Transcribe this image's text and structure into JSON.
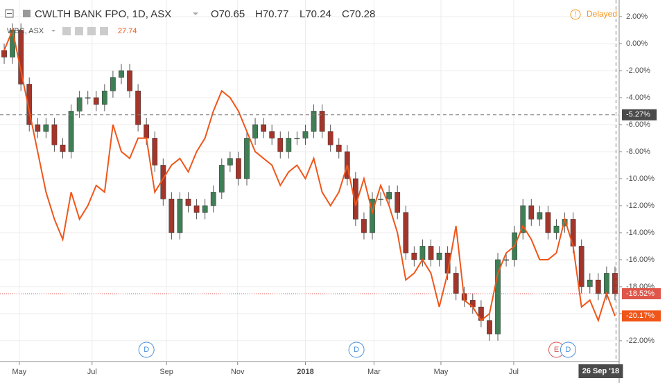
{
  "header": {
    "symbol": "CWLTH BANK FPO, 1D, ASX",
    "open": "O70.65",
    "high": "H70.77",
    "low": "L70.24",
    "close": "C70.28",
    "status": "Delayed"
  },
  "chart_data": {
    "type": "candlestick",
    "xlim": [
      0,
      74
    ],
    "xticks": [
      {
        "value": 2.3,
        "label": "May"
      },
      {
        "value": 11.0,
        "label": "Jul"
      },
      {
        "value": 19.9,
        "label": "Sep"
      },
      {
        "value": 28.4,
        "label": "Nov"
      },
      {
        "value": 36.5,
        "label": "2018"
      },
      {
        "value": 44.7,
        "label": "Mar"
      },
      {
        "value": 52.7,
        "label": "May"
      },
      {
        "value": 61.4,
        "label": "Jul"
      }
    ],
    "ylim": [
      -23.44,
      3.23
    ],
    "yticks": [
      {
        "value": 2,
        "label": "2.00%"
      },
      {
        "value": 0,
        "label": "0.00%"
      },
      {
        "value": -2,
        "label": "-2.00%"
      },
      {
        "value": -4,
        "label": "-4.00%"
      },
      {
        "value": -6,
        "label": "-6.00%"
      },
      {
        "value": -8,
        "label": "-8.00%"
      },
      {
        "value": -10,
        "label": "-10.00%"
      },
      {
        "value": -12,
        "label": "-12.00%"
      },
      {
        "value": -14,
        "label": "-14.00%"
      },
      {
        "value": -16,
        "label": "-16.00%"
      },
      {
        "value": -18,
        "label": "-18.00%"
      },
      {
        "value": -20,
        "label": "-20.00%"
      },
      {
        "value": -22,
        "label": "-22.00%"
      }
    ],
    "grid": true,
    "up_color": "#3f7f55",
    "down_color": "#a3352b",
    "candles": {
      "name": "CWLTH BANK FPO",
      "end_label": "-18.52%",
      "open": [
        -0.5,
        -1,
        1,
        -3,
        -6,
        -6.5,
        -6,
        -7.5,
        -8,
        -5,
        -4,
        -4,
        -4.5,
        -3.5,
        -2.5,
        -2,
        -3.5,
        -6,
        -7,
        -9,
        -11.5,
        -14,
        -11.5,
        -12,
        -12.5,
        -12,
        -11,
        -9,
        -8.5,
        -10,
        -7,
        -6,
        -6.5,
        -7,
        -8,
        -7,
        -7,
        -6.5,
        -5,
        -6.5,
        -7.5,
        -8,
        -10,
        -13,
        -14,
        -11.5,
        -11.5,
        -11,
        -12.5,
        -15.5,
        -16,
        -15,
        -16,
        -15.5,
        -17,
        -18.5,
        -19,
        -19.5,
        -20.5,
        -21.5,
        -16,
        -16,
        -14,
        -12,
        -13,
        -12.5,
        -14,
        -13.5,
        -13,
        -15,
        -18,
        -17.5,
        -18.5,
        -17
      ],
      "high": [
        0,
        1.5,
        1.5,
        -2.5,
        -5.5,
        -5.5,
        -5.5,
        -7,
        -4.5,
        -3.5,
        -3.5,
        -3.5,
        -3,
        -2,
        -1.5,
        -1.5,
        -3,
        -5.5,
        -6.5,
        -8.5,
        -11,
        -11,
        -11,
        -11.5,
        -11.5,
        -10.5,
        -8.5,
        -8,
        -8,
        -6.5,
        -5.5,
        -5.5,
        -6,
        -6.5,
        -6.5,
        -6.5,
        -6,
        -4.5,
        -4.5,
        -6,
        -7,
        -7.5,
        -9.5,
        -12.5,
        -11,
        -11,
        -10.5,
        -10.5,
        -12,
        -15,
        -14.5,
        -14.5,
        -15,
        -15,
        -16.5,
        -18,
        -18.5,
        -19,
        -20,
        -15.5,
        -15.5,
        -13.5,
        -11.5,
        -11.5,
        -12,
        -12,
        -13,
        -12.5,
        -12.5,
        -14.5,
        -17,
        -17,
        -16.5,
        -16.5
      ],
      "low": [
        -1.5,
        -1.5,
        -3.5,
        -6.5,
        -7,
        -7,
        -8,
        -8.5,
        -8.5,
        -5.5,
        -4.5,
        -5,
        -5,
        -4,
        -3,
        -4,
        -6.5,
        -7.5,
        -9.5,
        -12,
        -14.5,
        -14.5,
        -12.5,
        -13,
        -13,
        -12.5,
        -11.5,
        -9.5,
        -10.5,
        -10.5,
        -7.5,
        -7,
        -7.5,
        -8.5,
        -8.5,
        -7.5,
        -7.5,
        -7,
        -7,
        -8,
        -8.5,
        -10.5,
        -13.5,
        -14.5,
        -14.5,
        -12,
        -12,
        -13,
        -16,
        -16.5,
        -16.5,
        -16.5,
        -16.5,
        -17.5,
        -19,
        -19.5,
        -20,
        -21,
        -22,
        -22,
        -16.5,
        -16.5,
        -14.5,
        -13.5,
        -13.5,
        -14.5,
        -14.5,
        -14,
        -15.5,
        -18.5,
        -18.5,
        -19,
        -19,
        -19
      ],
      "close": [
        -1,
        1,
        -3,
        -6,
        -6.5,
        -6,
        -7.5,
        -8,
        -5,
        -4,
        -4,
        -4.5,
        -3.5,
        -2.5,
        -2,
        -3.5,
        -6,
        -7,
        -9,
        -11.5,
        -14,
        -11.5,
        -12,
        -12.5,
        -12,
        -11,
        -9,
        -8.5,
        -10,
        -7,
        -6,
        -6.5,
        -7,
        -8,
        -7,
        -7,
        -6.5,
        -5,
        -6.5,
        -7.5,
        -8,
        -10,
        -13,
        -14,
        -11.5,
        -11.5,
        -11,
        -12.5,
        -15.5,
        -16,
        -15,
        -16,
        -15.5,
        -17,
        -18.5,
        -19,
        -19.5,
        -20.5,
        -21.5,
        -16,
        -16,
        -14,
        -12,
        -13,
        -12.5,
        -14,
        -13.5,
        -13,
        -15,
        -18,
        -17.5,
        -18.5,
        -17,
        -18.52
      ]
    },
    "series": [
      {
        "name": "WBC, ASX",
        "last": "27.74",
        "color": "#f0561a",
        "end_label": "-20.17%",
        "values": [
          -0.5,
          1,
          -2,
          -5,
          -8,
          -11,
          -13,
          -14.5,
          -11,
          -13,
          -12,
          -10.5,
          -11,
          -6,
          -8,
          -8.5,
          -7,
          -7,
          -11,
          -10,
          -9,
          -8.5,
          -9.5,
          -8,
          -7,
          -5,
          -3.5,
          -4,
          -5,
          -6.5,
          -8,
          -8.5,
          -9,
          -10.5,
          -9.5,
          -9,
          -10,
          -8.5,
          -11,
          -12,
          -11,
          -9,
          -12,
          -10,
          -12.5,
          -10.5,
          -12,
          -14,
          -17.5,
          -17,
          -16,
          -17,
          -19.5,
          -17,
          -13.5,
          -19,
          -19.5,
          -20.5,
          -20,
          -17,
          -15.5,
          -15,
          -13.5,
          -14.5,
          -16,
          -16,
          -15.5,
          -13,
          -15,
          -19.5,
          -19,
          -20.5,
          -18.5,
          -20.17
        ]
      }
    ],
    "crosshair": {
      "value": -5.27,
      "label": "-5.27%"
    },
    "cursor_date": {
      "value": 71.8,
      "label": "26 Sep '18"
    },
    "events": [
      {
        "x": 17.5,
        "label": "D"
      },
      {
        "x": 42.6,
        "label": "D"
      },
      {
        "x": 66.5,
        "label": "E"
      },
      {
        "x": 67.9,
        "label": "D"
      }
    ]
  }
}
